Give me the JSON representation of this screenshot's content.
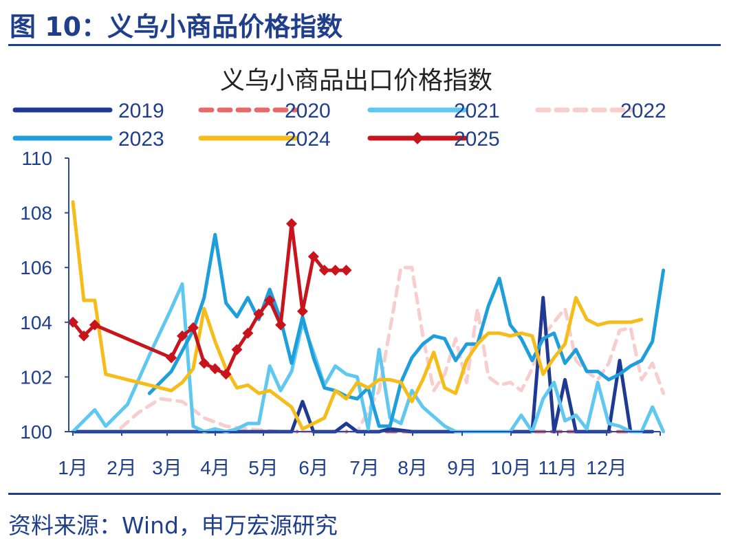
{
  "figure": {
    "title": "图 10：义乌小商品价格指数",
    "source": "资料来源：Wind，申万宏源研究"
  },
  "chart_data": {
    "type": "line",
    "title": "义乌小商品出口价格指数",
    "xlabel": "",
    "ylabel": "",
    "ylim": [
      100,
      110
    ],
    "yticks": [
      "100",
      "102",
      "104",
      "106",
      "108",
      "110"
    ],
    "xticks": [
      "1月",
      "2月",
      "3月",
      "4月",
      "5月",
      "6月",
      "7月",
      "8月",
      "9月",
      "10月",
      "11月",
      "12月"
    ],
    "x_unit": "week of year",
    "grid": false,
    "legend_position": "top",
    "series": [
      {
        "name": "2019",
        "color": "#1f3a93",
        "dash": "solid",
        "values": [
          [
            1,
            100
          ],
          [
            5,
            100
          ],
          [
            10,
            100
          ],
          [
            16,
            100
          ],
          [
            20,
            100
          ],
          [
            21,
            100
          ],
          [
            22,
            101.1
          ],
          [
            23,
            100
          ],
          [
            25,
            100
          ],
          [
            26,
            100.3
          ],
          [
            27,
            100
          ],
          [
            29,
            100
          ],
          [
            30,
            100.1
          ],
          [
            32,
            100
          ],
          [
            36,
            100
          ],
          [
            38,
            100
          ],
          [
            39,
            100
          ],
          [
            40,
            100
          ],
          [
            41,
            100
          ],
          [
            42,
            100
          ],
          [
            43,
            100
          ],
          [
            44,
            104.9
          ],
          [
            45,
            100
          ],
          [
            46,
            101.9
          ],
          [
            47,
            100
          ],
          [
            50,
            100
          ],
          [
            51,
            102.6
          ],
          [
            52,
            100
          ],
          [
            54,
            100
          ]
        ]
      },
      {
        "name": "2020",
        "color": "#e8696a",
        "dash": "dashed",
        "values": [
          [
            1,
            100
          ],
          [
            10,
            100
          ],
          [
            20,
            100
          ],
          [
            30,
            100
          ],
          [
            40,
            100
          ],
          [
            50,
            100
          ],
          [
            54,
            100
          ]
        ]
      },
      {
        "name": "2021",
        "color": "#5ec8f0",
        "dash": "solid",
        "values": [
          [
            1,
            100
          ],
          [
            3,
            100.8
          ],
          [
            4,
            100.2
          ],
          [
            6,
            101
          ],
          [
            8,
            102.8
          ],
          [
            10,
            104.5
          ],
          [
            11,
            105.4
          ],
          [
            12,
            100.2
          ],
          [
            13,
            100
          ],
          [
            14,
            100.1
          ],
          [
            15,
            100
          ],
          [
            16,
            100.1
          ],
          [
            17,
            100.3
          ],
          [
            18,
            100.3
          ],
          [
            19,
            102.4
          ],
          [
            20,
            101.5
          ],
          [
            21,
            102.2
          ],
          [
            22,
            104
          ],
          [
            23,
            102.9
          ],
          [
            24,
            101.7
          ],
          [
            25,
            102.4
          ],
          [
            26,
            102.1
          ],
          [
            27,
            102
          ],
          [
            28,
            100.1
          ],
          [
            29,
            103
          ],
          [
            30,
            100.5
          ],
          [
            31,
            100.3
          ],
          [
            32,
            101.5
          ],
          [
            33,
            100.9
          ],
          [
            35,
            100.2
          ],
          [
            36,
            100
          ],
          [
            38,
            100
          ],
          [
            39,
            100
          ],
          [
            40,
            100
          ],
          [
            41,
            100
          ],
          [
            42,
            100.6
          ],
          [
            43,
            100
          ],
          [
            44,
            101.2
          ],
          [
            45,
            101.8
          ],
          [
            46,
            100.4
          ],
          [
            47,
            100.6
          ],
          [
            48,
            100.1
          ],
          [
            49,
            101.8
          ],
          [
            50,
            100.3
          ],
          [
            51,
            100.2
          ],
          [
            52,
            100
          ],
          [
            53,
            100
          ],
          [
            54,
            100.9
          ],
          [
            55,
            100
          ]
        ]
      },
      {
        "name": "2022",
        "color": "#f7cdcd",
        "dash": "dashed",
        "values": [
          [
            1,
            100
          ],
          [
            5,
            100
          ],
          [
            7,
            100.7
          ],
          [
            9,
            101.2
          ],
          [
            11,
            101.1
          ],
          [
            13,
            100.5
          ],
          [
            15,
            100.2
          ],
          [
            17,
            100.1
          ],
          [
            20,
            100
          ],
          [
            27,
            100
          ],
          [
            29,
            101.5
          ],
          [
            31,
            106
          ],
          [
            32,
            106
          ],
          [
            33,
            103.5
          ],
          [
            34,
            101.5
          ],
          [
            35,
            102.1
          ],
          [
            36,
            103.4
          ],
          [
            37,
            101.8
          ],
          [
            38,
            104.5
          ],
          [
            39,
            102
          ],
          [
            40,
            101.7
          ],
          [
            41,
            101.8
          ],
          [
            42,
            101.5
          ],
          [
            43,
            102.3
          ],
          [
            44,
            103.5
          ],
          [
            45,
            104
          ],
          [
            46,
            104.5
          ],
          [
            47,
            102.6
          ],
          [
            48,
            102.2
          ],
          [
            49,
            101.9
          ],
          [
            50,
            102.5
          ],
          [
            51,
            103.7
          ],
          [
            52,
            103.8
          ],
          [
            53,
            101.9
          ],
          [
            54,
            102.5
          ],
          [
            55,
            101.4
          ]
        ]
      },
      {
        "name": "2023",
        "color": "#1e9fdc",
        "dash": "solid",
        "values": [
          [
            8,
            101.4
          ],
          [
            10,
            102.2
          ],
          [
            12,
            103.7
          ],
          [
            13,
            104.9
          ],
          [
            14,
            107.2
          ],
          [
            15,
            104.7
          ],
          [
            16,
            104.2
          ],
          [
            17,
            104.9
          ],
          [
            18,
            104.1
          ],
          [
            19,
            105.2
          ],
          [
            20,
            104.1
          ],
          [
            21,
            102.5
          ],
          [
            22,
            104.2
          ],
          [
            23,
            102.7
          ],
          [
            24,
            101.6
          ],
          [
            25,
            101.5
          ],
          [
            26,
            101.3
          ],
          [
            27,
            101.2
          ],
          [
            28,
            101.6
          ],
          [
            29,
            100.2
          ],
          [
            30,
            100.2
          ],
          [
            31,
            101.8
          ],
          [
            32,
            102.7
          ],
          [
            33,
            103.2
          ],
          [
            34,
            103.5
          ],
          [
            35,
            103.4
          ],
          [
            36,
            102.6
          ],
          [
            37,
            103.2
          ],
          [
            38,
            103.2
          ],
          [
            39,
            104.6
          ],
          [
            40,
            105.6
          ],
          [
            41,
            103.9
          ],
          [
            42,
            103.4
          ],
          [
            43,
            102.6
          ],
          [
            44,
            103.4
          ],
          [
            45,
            103.6
          ],
          [
            46,
            102.5
          ],
          [
            47,
            103
          ],
          [
            48,
            102.2
          ],
          [
            49,
            102.2
          ],
          [
            50,
            101.9
          ],
          [
            51,
            102.1
          ],
          [
            52,
            102.4
          ],
          [
            53,
            102.6
          ],
          [
            54,
            103.3
          ],
          [
            55,
            105.9
          ]
        ]
      },
      {
        "name": "2024",
        "color": "#f5bc1a",
        "dash": "solid",
        "values": [
          [
            1,
            108.4
          ],
          [
            2,
            104.8
          ],
          [
            3,
            104.8
          ],
          [
            4,
            102.1
          ],
          [
            6,
            101.9
          ],
          [
            8,
            101.7
          ],
          [
            10,
            101.5
          ],
          [
            11,
            101.8
          ],
          [
            12,
            102.3
          ],
          [
            13,
            104.5
          ],
          [
            14,
            103.3
          ],
          [
            15,
            102.3
          ],
          [
            16,
            101.6
          ],
          [
            17,
            101.7
          ],
          [
            18,
            101.4
          ],
          [
            19,
            101.5
          ],
          [
            20,
            101.2
          ],
          [
            21,
            100.9
          ],
          [
            22,
            100.1
          ],
          [
            23,
            100.3
          ],
          [
            24,
            100.5
          ],
          [
            25,
            101.5
          ],
          [
            26,
            101.2
          ],
          [
            27,
            101.8
          ],
          [
            28,
            101.6
          ],
          [
            29,
            101.9
          ],
          [
            30,
            101.9
          ],
          [
            31,
            101.8
          ],
          [
            32,
            101.1
          ],
          [
            33,
            101.9
          ],
          [
            34,
            102.9
          ],
          [
            35,
            101.6
          ],
          [
            36,
            101.4
          ],
          [
            37,
            102.6
          ],
          [
            38,
            103.2
          ],
          [
            39,
            103.6
          ],
          [
            40,
            103.6
          ],
          [
            41,
            103.5
          ],
          [
            42,
            103.6
          ],
          [
            43,
            103.5
          ],
          [
            44,
            102.1
          ],
          [
            45,
            102.7
          ],
          [
            46,
            103.2
          ],
          [
            47,
            104.9
          ],
          [
            48,
            104.1
          ],
          [
            49,
            103.9
          ],
          [
            50,
            104
          ],
          [
            51,
            104
          ],
          [
            52,
            104
          ],
          [
            53,
            104.1
          ]
        ]
      },
      {
        "name": "2025",
        "color": "#c8141c",
        "dash": "solid",
        "values": [
          [
            1,
            104
          ],
          [
            2,
            103.5
          ],
          [
            3,
            103.9
          ],
          [
            10,
            102.7
          ],
          [
            11,
            103.5
          ],
          [
            12,
            103.8
          ],
          [
            13,
            102.5
          ],
          [
            14,
            102.3
          ],
          [
            15,
            102.1
          ],
          [
            16,
            103
          ],
          [
            17,
            103.6
          ],
          [
            18,
            104.3
          ],
          [
            19,
            104.8
          ],
          [
            20,
            103.9
          ],
          [
            21,
            107.6
          ],
          [
            22,
            104.4
          ],
          [
            23,
            106.4
          ],
          [
            24,
            105.9
          ],
          [
            25,
            105.9
          ],
          [
            26,
            105.9
          ]
        ]
      }
    ]
  }
}
